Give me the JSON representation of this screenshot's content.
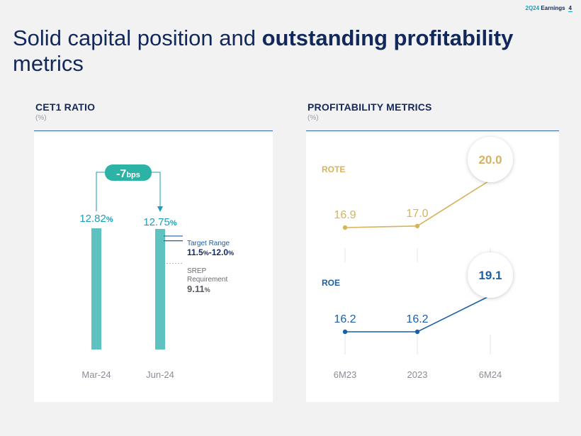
{
  "header": {
    "label_prefix": "2Q24",
    "label_suffix": "Earnings",
    "page_number": "4"
  },
  "title": {
    "regular": "Solid capital position and ",
    "bold": "outstanding profitability",
    "line2": "metrics"
  },
  "cet1": {
    "section_title": "CET1 RATIO",
    "unit": "(%)"
  },
  "profitability": {
    "section_title": "PROFITABILITY METRICS",
    "unit": "(%)"
  },
  "colors": {
    "navy": "#13285a",
    "teal": "#1a9fb8",
    "bar": "#5ec3c0",
    "gold": "#d6b35c",
    "blue": "#1b5fa8",
    "gray": "#8c8c96"
  },
  "chart_data": [
    {
      "type": "bar",
      "title": "CET1 RATIO",
      "ylabel": "(%)",
      "categories": [
        "Mar-24",
        "Jun-24"
      ],
      "values": [
        12.82,
        12.75
      ],
      "value_labels": [
        "12.82",
        "12.75"
      ],
      "value_suffix": "%",
      "change": {
        "value": "-7",
        "unit": "bps"
      },
      "target_range": {
        "label": "Target Range",
        "value": "11.5%-12.0%",
        "range_values": [
          "11.5",
          "12.0"
        ],
        "low": 11.5,
        "high": 12.0
      },
      "srep": {
        "label_line1": "SREP",
        "label_line2": "Requirement",
        "value": "9.11",
        "suffix": "%"
      },
      "ylim": [
        0,
        12.82
      ]
    },
    {
      "type": "line",
      "title": "PROFITABILITY METRICS",
      "ylabel": "(%)",
      "categories": [
        "6M23",
        "2023",
        "6M24"
      ],
      "series": [
        {
          "name": "ROTE",
          "values": [
            16.9,
            17.0,
            20.0
          ],
          "labels": [
            "16.9",
            "17.0",
            "20.0"
          ]
        },
        {
          "name": "ROE",
          "values": [
            16.2,
            16.2,
            19.1
          ],
          "labels": [
            "16.2",
            "16.2",
            "19.1"
          ]
        }
      ]
    }
  ]
}
